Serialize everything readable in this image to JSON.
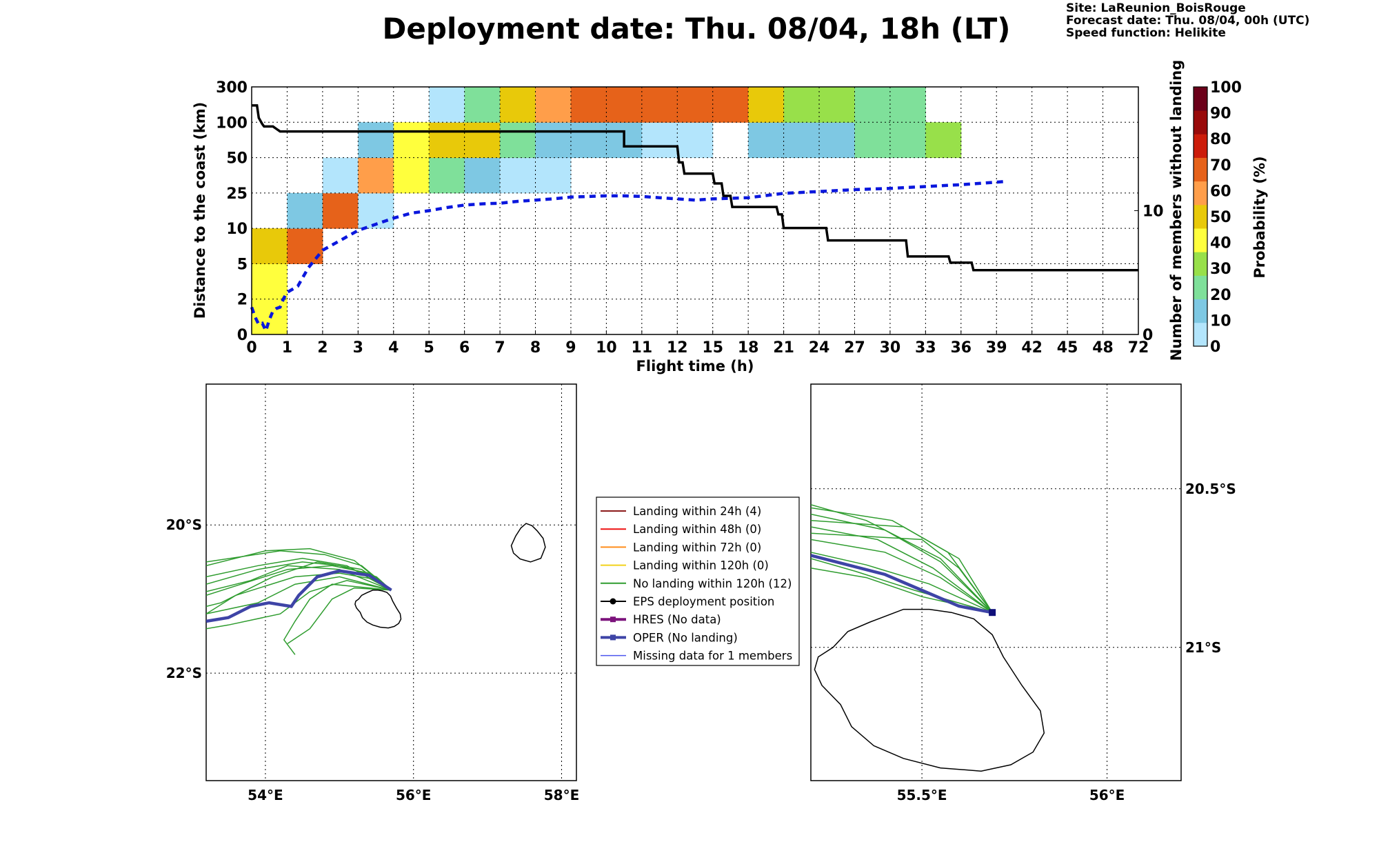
{
  "title": "Deployment date: Thu. 08/04, 18h (LT)",
  "info": {
    "site": "Site: LaReunion_BoisRouge",
    "forecast": "Forecast date: Thu. 08/04, 00h (UTC)",
    "speed": "Speed function: Helikite"
  },
  "colors": {
    "mean_line": "#0a17dd",
    "members_line": "#000000",
    "traj_green": "#2e9c2e",
    "oper": "#3e44a6",
    "landing24": "#8b1a1a",
    "landing48": "#ee1111",
    "landing72": "#ff8c1a",
    "landing120": "#f2d21a",
    "hres": "#7c137c",
    "missing": "#4b55ee"
  },
  "chart_data": [
    {
      "type": "heatmap",
      "xlabel": "Flight time (h)",
      "ylabel": "Distance to the coast (km)",
      "y2label": "Number of members without landing",
      "x_ticks": [
        "0",
        "1",
        "2",
        "3",
        "4",
        "5",
        "6",
        "7",
        "8",
        "9",
        "10",
        "11",
        "12",
        "15",
        "18",
        "21",
        "24",
        "27",
        "30",
        "33",
        "36",
        "39",
        "42",
        "45",
        "48",
        "72"
      ],
      "y_ticks": [
        "0",
        "2",
        "5",
        "10",
        "25",
        "50",
        "100",
        "300"
      ],
      "y2_ticks": [
        "0",
        "10"
      ],
      "y2_range": [
        0,
        20
      ],
      "colorbar": {
        "label": "Probability (%)",
        "ticks": [
          "0",
          "10",
          "20",
          "30",
          "40",
          "50",
          "60",
          "70",
          "80",
          "90",
          "100"
        ],
        "colors": [
          "#b3e5fc",
          "#7ec8e3",
          "#7fe09a",
          "#98e04a",
          "#ffff3d",
          "#e8c90a",
          "#ff9e4a",
          "#e6621a",
          "#cc1c0a",
          "#990a0a",
          "#6b0019"
        ]
      },
      "cells": [
        {
          "x": 0,
          "y": 0,
          "p": 40
        },
        {
          "x": 0,
          "y": 1,
          "p": 40
        },
        {
          "x": 0,
          "y": 2,
          "p": 50
        },
        {
          "x": 1,
          "y": 2,
          "p": 70
        },
        {
          "x": 1,
          "y": 3,
          "p": 10
        },
        {
          "x": 2,
          "y": 3,
          "p": 70
        },
        {
          "x": 2,
          "y": 4,
          "p": 0
        },
        {
          "x": 3,
          "y": 3,
          "p": 0
        },
        {
          "x": 3,
          "y": 4,
          "p": 60
        },
        {
          "x": 3,
          "y": 5,
          "p": 10
        },
        {
          "x": 4,
          "y": 4,
          "p": 40
        },
        {
          "x": 4,
          "y": 5,
          "p": 40
        },
        {
          "x": 5,
          "y": 4,
          "p": 20
        },
        {
          "x": 5,
          "y": 5,
          "p": 50
        },
        {
          "x": 5,
          "y": 6,
          "p": 0
        },
        {
          "x": 6,
          "y": 4,
          "p": 10
        },
        {
          "x": 6,
          "y": 5,
          "p": 50
        },
        {
          "x": 6,
          "y": 6,
          "p": 20
        },
        {
          "x": 7,
          "y": 4,
          "p": 0
        },
        {
          "x": 7,
          "y": 5,
          "p": 20
        },
        {
          "x": 7,
          "y": 6,
          "p": 50
        },
        {
          "x": 8,
          "y": 4,
          "p": 0
        },
        {
          "x": 8,
          "y": 5,
          "p": 10
        },
        {
          "x": 8,
          "y": 6,
          "p": 60
        },
        {
          "x": 9,
          "y": 5,
          "p": 10
        },
        {
          "x": 9,
          "y": 6,
          "p": 70
        },
        {
          "x": 10,
          "y": 5,
          "p": 10
        },
        {
          "x": 10,
          "y": 6,
          "p": 70
        },
        {
          "x": 11,
          "y": 5,
          "p": 0
        },
        {
          "x": 11,
          "y": 6,
          "p": 70
        },
        {
          "x": 12,
          "y": 5,
          "p": 0
        },
        {
          "x": 12,
          "y": 6,
          "p": 70
        },
        {
          "x": 13,
          "y": 6,
          "p": 70
        },
        {
          "x": 14,
          "y": 5,
          "p": 10
        },
        {
          "x": 14,
          "y": 6,
          "p": 50
        },
        {
          "x": 15,
          "y": 5,
          "p": 10
        },
        {
          "x": 15,
          "y": 6,
          "p": 30
        },
        {
          "x": 16,
          "y": 5,
          "p": 10
        },
        {
          "x": 16,
          "y": 6,
          "p": 30
        },
        {
          "x": 17,
          "y": 5,
          "p": 20
        },
        {
          "x": 17,
          "y": 6,
          "p": 20
        },
        {
          "x": 18,
          "y": 5,
          "p": 20
        },
        {
          "x": 18,
          "y": 6,
          "p": 20
        },
        {
          "x": 19,
          "y": 5,
          "p": 30
        }
      ],
      "series": [
        {
          "style": "dashed-blue",
          "points": [
            [
              0,
              2.2
            ],
            [
              0.1,
              1.4
            ],
            [
              0.2,
              0.8
            ],
            [
              0.3,
              0.9
            ],
            [
              0.4,
              0.3
            ],
            [
              0.5,
              1.2
            ],
            [
              0.6,
              1.9
            ],
            [
              0.7,
              2.1
            ],
            [
              0.8,
              2.2
            ],
            [
              0.9,
              2.9
            ],
            [
              1.0,
              3.4
            ],
            [
              1.3,
              3.9
            ],
            [
              1.6,
              5.4
            ],
            [
              2,
              6.8
            ],
            [
              2.5,
              7.6
            ],
            [
              3,
              8.4
            ],
            [
              3.5,
              8.9
            ],
            [
              4,
              9.4
            ],
            [
              4.5,
              9.8
            ],
            [
              5,
              10.0
            ],
            [
              5.5,
              10.25
            ],
            [
              6,
              10.45
            ],
            [
              6.5,
              10.55
            ],
            [
              7,
              10.6
            ],
            [
              7.5,
              10.75
            ],
            [
              8,
              10.85
            ],
            [
              8.5,
              10.95
            ],
            [
              9,
              11.1
            ],
            [
              9.5,
              11.15
            ],
            [
              10,
              11.2
            ],
            [
              10.5,
              11.2
            ],
            [
              11,
              11.15
            ],
            [
              11.5,
              11.05
            ],
            [
              12,
              10.95
            ],
            [
              12.5,
              10.85
            ],
            [
              13,
              10.95
            ],
            [
              14,
              11.05
            ],
            [
              15,
              11.4
            ],
            [
              16,
              11.55
            ],
            [
              17,
              11.7
            ],
            [
              18,
              11.8
            ],
            [
              19,
              11.95
            ],
            [
              20,
              12.1
            ],
            [
              21.0,
              12.3
            ],
            [
              21.2,
              12.35
            ],
            [
              21.3,
              12.4
            ]
          ]
        },
        {
          "style": "solid-black",
          "points": [
            [
              0,
              18.5
            ],
            [
              0.15,
              18.5
            ],
            [
              0.2,
              17.5
            ],
            [
              0.3,
              17
            ],
            [
              0.35,
              16.8
            ],
            [
              0.6,
              16.8
            ],
            [
              0.7,
              16.6
            ],
            [
              0.8,
              16.4
            ],
            [
              10.5,
              16.4
            ],
            [
              10.5,
              15.2
            ],
            [
              12,
              15.2
            ],
            [
              12.05,
              13.9
            ],
            [
              12.15,
              13.9
            ],
            [
              12.2,
              13
            ],
            [
              13,
              13
            ],
            [
              13.05,
              12.2
            ],
            [
              13.25,
              12.2
            ],
            [
              13.3,
              11.2
            ],
            [
              13.5,
              11.2
            ],
            [
              13.55,
              10.3
            ],
            [
              14.8,
              10.3
            ],
            [
              14.85,
              9.7
            ],
            [
              14.95,
              9.7
            ],
            [
              15.0,
              8.6
            ],
            [
              16.2,
              8.6
            ],
            [
              16.25,
              7.6
            ],
            [
              18.45,
              7.6
            ],
            [
              18.5,
              6.3
            ],
            [
              19.65,
              6.3
            ],
            [
              19.7,
              5.8
            ],
            [
              20.3,
              5.8
            ],
            [
              20.35,
              5.2
            ],
            [
              25,
              5.2
            ]
          ]
        }
      ]
    },
    {
      "type": "map",
      "lon_ticks": [
        "54°E",
        "56°E",
        "58°E"
      ],
      "lat_ticks": [
        "20°S",
        "22°S"
      ],
      "lon_range": [
        53.2,
        58.2
      ],
      "lat_range": [
        -23.45,
        -18.1
      ]
    },
    {
      "type": "map",
      "lon_ticks": [
        "55.5°E",
        "56°E"
      ],
      "lat_ticks": [
        "20.5°S",
        "21°S"
      ],
      "lon_range": [
        55.2,
        56.2
      ],
      "lat_range": [
        -21.42,
        -20.17
      ]
    }
  ],
  "legend": [
    {
      "label": "Landing within 24h (4)",
      "color_key": "landing24",
      "marker": "none",
      "width": 2
    },
    {
      "label": "Landing within 48h (0)",
      "color_key": "landing48",
      "marker": "none",
      "width": 2
    },
    {
      "label": "Landing within 72h (0)",
      "color_key": "landing72",
      "marker": "none",
      "width": 2
    },
    {
      "label": "Landing within 120h (0)",
      "color_key": "landing120",
      "marker": "none",
      "width": 2
    },
    {
      "label": "No landing within 120h (12)",
      "color_key": "traj_green",
      "marker": "none",
      "width": 2
    },
    {
      "label": "EPS deployment position",
      "color_key": "members_line",
      "marker": "circle",
      "width": 2
    },
    {
      "label": "HRES (No data)",
      "color_key": "hres",
      "marker": "square",
      "width": 4
    },
    {
      "label": "OPER (No landing)",
      "color_key": "oper",
      "marker": "square",
      "width": 4
    },
    {
      "label": "Missing data for 1 members",
      "color_key": "missing",
      "marker": "none",
      "width": 1.5
    }
  ]
}
